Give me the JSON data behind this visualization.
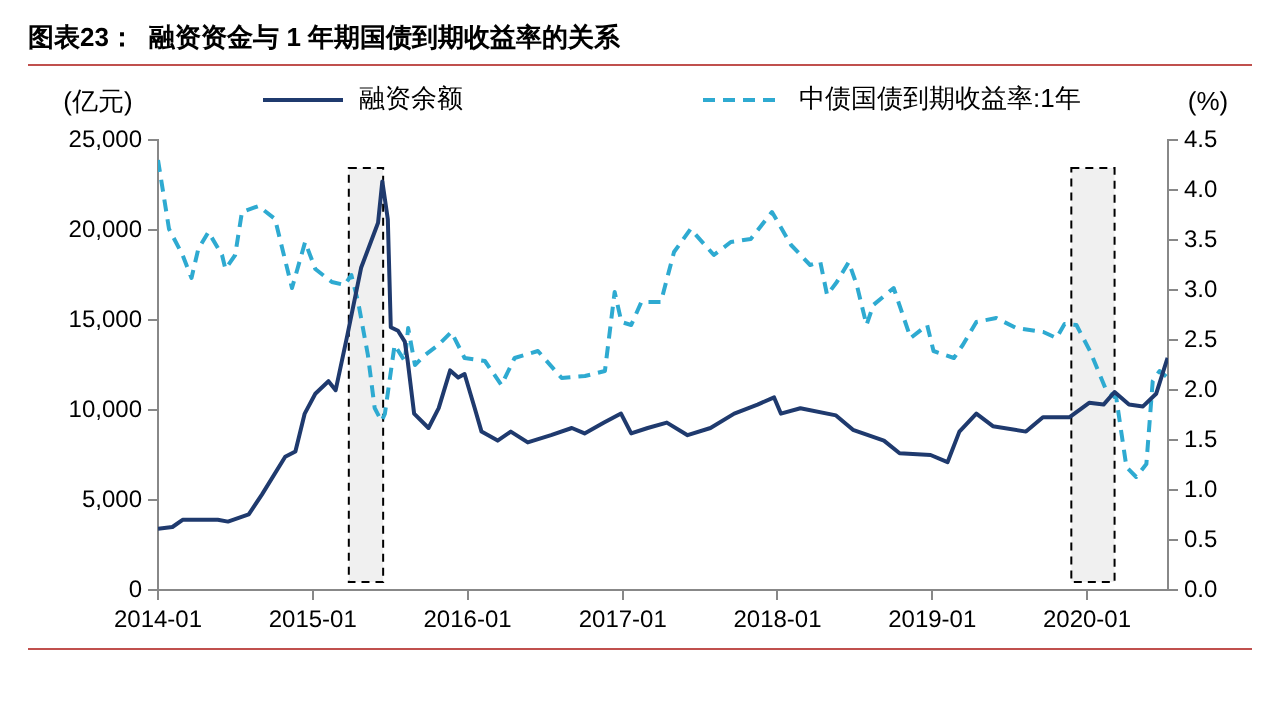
{
  "chart_data": {
    "type": "line",
    "title": "图表23：  融资资金与 1 年期国债到期收益率的关系",
    "ylabel": "(亿元)",
    "y2label": "(%)",
    "xlim": [
      "2014-01-01",
      "2020-07-10"
    ],
    "xticks": [
      {
        "value": "2014-01-01",
        "label": "2014-01"
      },
      {
        "value": "2015-01-01",
        "label": "2015-01"
      },
      {
        "value": "2016-01-01",
        "label": "2016-01"
      },
      {
        "value": "2017-01-01",
        "label": "2017-01"
      },
      {
        "value": "2018-01-01",
        "label": "2018-01"
      },
      {
        "value": "2019-01-01",
        "label": "2019-01"
      },
      {
        "value": "2020-01-01",
        "label": "2020-01"
      }
    ],
    "ylim": [
      0,
      25000
    ],
    "yticks": [
      {
        "value": 0,
        "label": "0"
      },
      {
        "value": 5000,
        "label": "5,000"
      },
      {
        "value": 10000,
        "label": "10,000"
      },
      {
        "value": 15000,
        "label": "15,000"
      },
      {
        "value": 20000,
        "label": "20,000"
      },
      {
        "value": 25000,
        "label": "25,000"
      }
    ],
    "y2lim": [
      0,
      4.5
    ],
    "y2ticks": [
      {
        "value": 0,
        "label": "0.0"
      },
      {
        "value": 0.5,
        "label": "0.5"
      },
      {
        "value": 1,
        "label": "1.0"
      },
      {
        "value": 1.5,
        "label": "1.5"
      },
      {
        "value": 2,
        "label": "2.0"
      },
      {
        "value": 2.5,
        "label": "2.5"
      },
      {
        "value": 3,
        "label": "3.0"
      },
      {
        "value": 3.5,
        "label": "3.5"
      },
      {
        "value": 4,
        "label": "4.0"
      },
      {
        "value": 4.5,
        "label": "4.5"
      }
    ],
    "grid": false,
    "legend": "top",
    "marker": "none",
    "bands": [
      {
        "axis": "x",
        "from": "2015-03-27",
        "to": "2015-06-16",
        "color": "#000000"
      },
      {
        "axis": "x",
        "from": "2019-11-25",
        "to": "2020-03-06",
        "color": "#000000"
      }
    ],
    "series": [
      {
        "name": "融资余额",
        "color": "#1f3a6e",
        "line_style": "solid",
        "axis": "y",
        "x": [
          "2014-01-01",
          "2014-02-04",
          "2014-02-28",
          "2014-05-22",
          "2014-06-15",
          "2014-08-03",
          "2014-09-03",
          "2014-10-28",
          "2014-11-21",
          "2014-12-13",
          "2015-01-07",
          "2015-02-07",
          "2015-02-24",
          "2015-03-24",
          "2015-04-25",
          "2015-06-04",
          "2015-06-14",
          "2015-06-27",
          "2015-07-04",
          "2015-07-21",
          "2015-08-06",
          "2015-08-13",
          "2015-08-28",
          "2015-10-01",
          "2015-10-25",
          "2015-11-21",
          "2015-12-10",
          "2015-12-25",
          "2016-01-18",
          "2016-02-03",
          "2016-03-12",
          "2016-04-12",
          "2016-05-22",
          "2016-07-16",
          "2016-09-03",
          "2016-10-03",
          "2016-11-18",
          "2016-12-28",
          "2017-01-21",
          "2017-03-01",
          "2017-04-15",
          "2017-06-03",
          "2017-07-27",
          "2017-09-21",
          "2017-11-15",
          "2017-12-24",
          "2018-01-09",
          "2018-02-24",
          "2018-05-19",
          "2018-06-28",
          "2018-09-09",
          "2018-10-16",
          "2018-12-28",
          "2019-02-06",
          "2019-03-06",
          "2019-04-15",
          "2019-05-24",
          "2019-08-10",
          "2019-09-19",
          "2019-11-21",
          "2020-01-06",
          "2020-02-09",
          "2020-03-06",
          "2020-04-09",
          "2020-05-12",
          "2020-06-12",
          "2020-07-09"
        ],
        "values": [
          3400,
          3500,
          3900,
          3900,
          3800,
          4200,
          5300,
          7400,
          7700,
          9800,
          10900,
          11600,
          11100,
          14200,
          17900,
          20400,
          22700,
          20600,
          14600,
          14400,
          13800,
          12700,
          9800,
          9000,
          10100,
          12200,
          11800,
          12000,
          10100,
          8800,
          8300,
          8800,
          8200,
          8600,
          9000,
          8700,
          9300,
          9800,
          8700,
          9000,
          9300,
          8600,
          9000,
          9800,
          10300,
          10700,
          9800,
          10100,
          9700,
          8900,
          8300,
          7600,
          7500,
          7100,
          8800,
          9800,
          9100,
          8800,
          9600,
          9600,
          10400,
          10300,
          11000,
          10300,
          10200,
          10900,
          12900
        ]
      },
      {
        "name": "中债国债到期收益率:1年",
        "color": "#2eaad1",
        "line_style": "dashed",
        "axis": "y2",
        "x": [
          "2014-01-01",
          "2014-01-27",
          "2014-02-28",
          "2014-03-21",
          "2014-04-06",
          "2014-04-30",
          "2014-06-01",
          "2014-06-09",
          "2014-07-02",
          "2014-07-18",
          "2014-08-26",
          "2014-10-04",
          "2014-11-13",
          "2014-12-14",
          "2015-01-07",
          "2015-02-15",
          "2015-03-17",
          "2015-04-02",
          "2015-04-18",
          "2015-05-11",
          "2015-05-27",
          "2015-06-12",
          "2015-06-20",
          "2015-07-13",
          "2015-08-06",
          "2015-08-14",
          "2015-08-30",
          "2015-09-23",
          "2015-10-24",
          "2015-11-24",
          "2015-12-25",
          "2016-02-11",
          "2016-03-21",
          "2016-04-21",
          "2016-06-15",
          "2016-08-10",
          "2016-10-04",
          "2016-11-20",
          "2016-12-13",
          "2016-12-29",
          "2017-01-21",
          "2017-02-14",
          "2017-04-01",
          "2017-05-02",
          "2017-06-10",
          "2017-08-04",
          "2017-09-13",
          "2017-10-30",
          "2017-12-19",
          "2018-02-02",
          "2018-03-19",
          "2018-04-12",
          "2018-04-28",
          "2018-05-21",
          "2018-06-18",
          "2018-07-07",
          "2018-07-30",
          "2018-08-15",
          "2018-10-02",
          "2018-11-11",
          "2018-12-20",
          "2019-01-04",
          "2019-02-21",
          "2019-03-14",
          "2019-04-15",
          "2019-06-01",
          "2019-07-18",
          "2019-09-20",
          "2019-10-21",
          "2019-11-09",
          "2019-12-07",
          "2020-01-08",
          "2020-02-16",
          "2020-03-10",
          "2020-04-03",
          "2020-04-26",
          "2020-05-20",
          "2020-06-04",
          "2020-06-20",
          "2020-07-10"
        ],
        "values": [
          4.3,
          3.61,
          3.35,
          3.12,
          3.41,
          3.58,
          3.35,
          3.21,
          3.35,
          3.78,
          3.84,
          3.71,
          3.02,
          3.48,
          3.21,
          3.08,
          3.05,
          3.15,
          2.88,
          2.35,
          1.82,
          1.69,
          1.76,
          2.45,
          2.29,
          2.62,
          2.25,
          2.35,
          2.45,
          2.58,
          2.32,
          2.29,
          2.05,
          2.32,
          2.39,
          2.12,
          2.14,
          2.19,
          2.98,
          2.68,
          2.65,
          2.88,
          2.88,
          3.38,
          3.61,
          3.35,
          3.48,
          3.51,
          3.78,
          3.45,
          3.25,
          3.28,
          2.95,
          3.08,
          3.28,
          3.05,
          2.65,
          2.85,
          3.02,
          2.52,
          2.65,
          2.39,
          2.32,
          2.45,
          2.68,
          2.72,
          2.62,
          2.58,
          2.52,
          2.66,
          2.65,
          2.39,
          1.99,
          1.92,
          1.23,
          1.13,
          1.26,
          2.09,
          2.19,
          2.12
        ]
      }
    ]
  }
}
